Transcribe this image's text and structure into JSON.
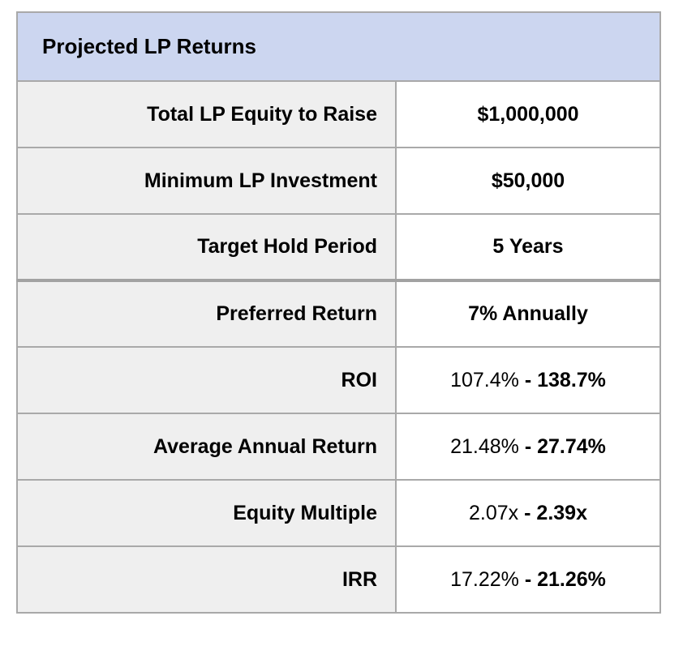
{
  "table": {
    "title": "Projected LP Returns",
    "colors": {
      "header_bg": "#ccd6f0",
      "label_bg": "#efefef",
      "value_bg": "#ffffff",
      "border": "#a9a9a9",
      "text": "#000000"
    },
    "rows": [
      {
        "label": "Total LP Equity to Raise",
        "value": "$1,000,000"
      },
      {
        "label": "Minimum LP Investment",
        "value": "$50,000"
      },
      {
        "label": "Target Hold Period",
        "value": "5 Years"
      },
      {
        "label": "Preferred Return",
        "value": "7% Annually"
      },
      {
        "label": "ROI",
        "value_normal": "107.4%",
        "value_bold": "- 138.7%"
      },
      {
        "label": "Average Annual Return",
        "value_normal": "21.48%",
        "value_bold": "- 27.74%"
      },
      {
        "label": "Equity Multiple",
        "value_normal": "2.07x",
        "value_bold": "- 2.39x"
      },
      {
        "label": "IRR",
        "value_normal": "17.22%",
        "value_bold": "- 21.26%"
      }
    ]
  }
}
